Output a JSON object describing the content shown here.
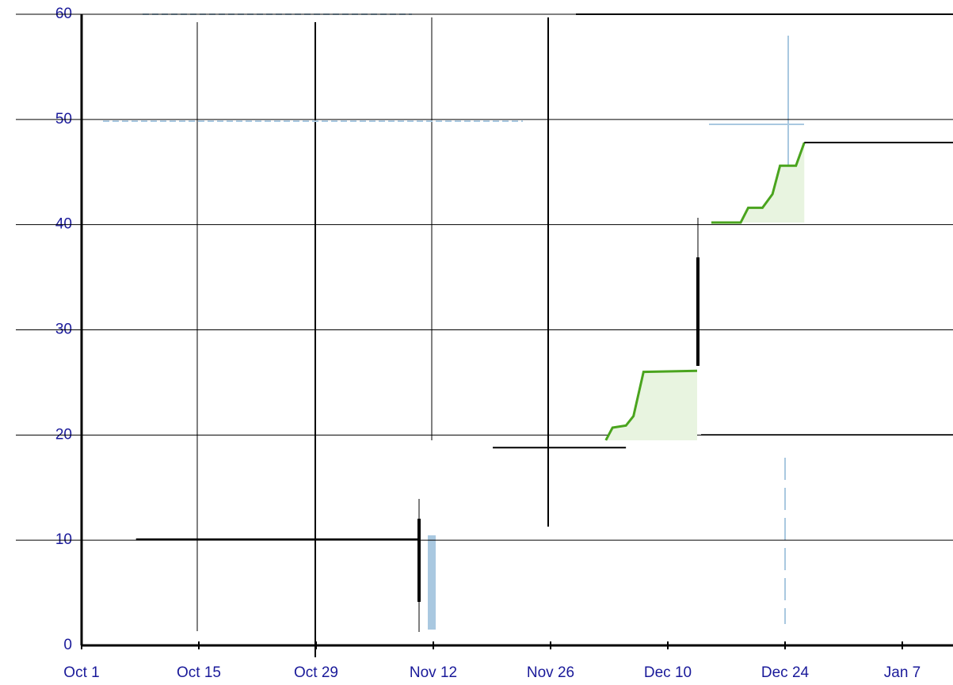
{
  "chart_data": {
    "type": "line",
    "xlim": [
      0,
      105
    ],
    "ylim": [
      0,
      60
    ],
    "xticks": [
      {
        "value": 0,
        "label": "Oct 1"
      },
      {
        "value": 14,
        "label": "Oct 15"
      },
      {
        "value": 28,
        "label": "Oct 29"
      },
      {
        "value": 42,
        "label": "Nov 12"
      },
      {
        "value": 56,
        "label": "Nov 26"
      },
      {
        "value": 70,
        "label": "Dec 10"
      },
      {
        "value": 84,
        "label": "Dec 24"
      },
      {
        "value": 98,
        "label": "Jan 7"
      }
    ],
    "yticks": [
      0,
      10,
      20,
      30,
      40,
      50,
      60
    ],
    "grid": true,
    "series": [
      {
        "color": "#4aa41e",
        "fill": "#e8f4e0",
        "x": [
          62.6,
          63.4,
          65.0,
          65.9,
          67.1,
          73.5,
          null,
          75.2,
          78.7,
          79.6,
          81.3,
          82.5,
          83.4,
          85.3,
          86.3
        ],
        "values": [
          19.5,
          20.7,
          20.9,
          21.8,
          26.0,
          26.1,
          null,
          40.2,
          40.2,
          41.6,
          41.6,
          42.9,
          45.6,
          45.6,
          47.8
        ]
      },
      {
        "color": "#000000",
        "x": [
          6.5,
          40.2,
          null,
          49.1,
          65.0,
          null,
          86.3,
          105
        ],
        "values": [
          10.1,
          10.1,
          null,
          18.8,
          18.8,
          null,
          47.8,
          47.8
        ]
      }
    ]
  }
}
